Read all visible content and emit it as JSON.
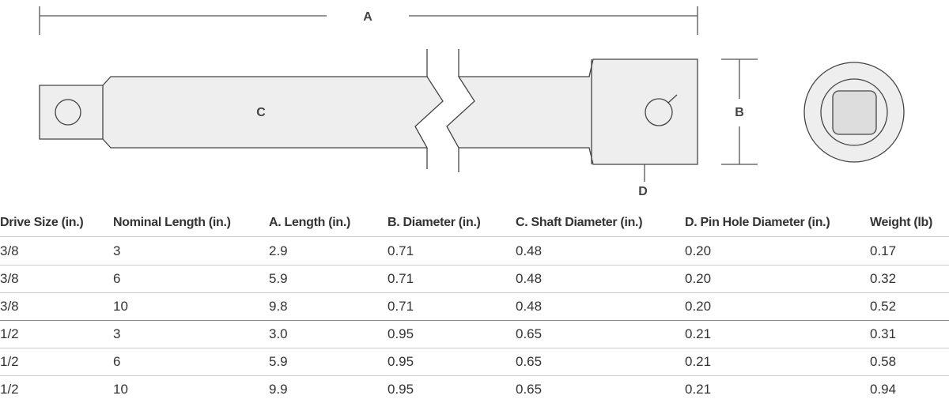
{
  "diagram": {
    "labels": {
      "a": "A",
      "b": "B",
      "c": "C",
      "d": "D"
    }
  },
  "table": {
    "headers": [
      "Drive Size (in.)",
      "Nominal Length (in.)",
      "A. Length (in.)",
      "B. Diameter (in.)",
      "C. Shaft Diameter (in.)",
      "D. Pin Hole Diameter (in.)",
      "Weight (lb)"
    ],
    "rows": [
      [
        "3/8",
        "3",
        "2.9",
        "0.71",
        "0.48",
        "0.20",
        "0.17"
      ],
      [
        "3/8",
        "6",
        "5.9",
        "0.71",
        "0.48",
        "0.20",
        "0.32"
      ],
      [
        "3/8",
        "10",
        "9.8",
        "0.71",
        "0.48",
        "0.20",
        "0.52"
      ],
      [
        "1/2",
        "3",
        "3.0",
        "0.95",
        "0.65",
        "0.21",
        "0.31"
      ],
      [
        "1/2",
        "6",
        "5.9",
        "0.95",
        "0.65",
        "0.21",
        "0.58"
      ],
      [
        "1/2",
        "10",
        "9.9",
        "0.95",
        "0.65",
        "0.21",
        "0.94"
      ]
    ]
  }
}
